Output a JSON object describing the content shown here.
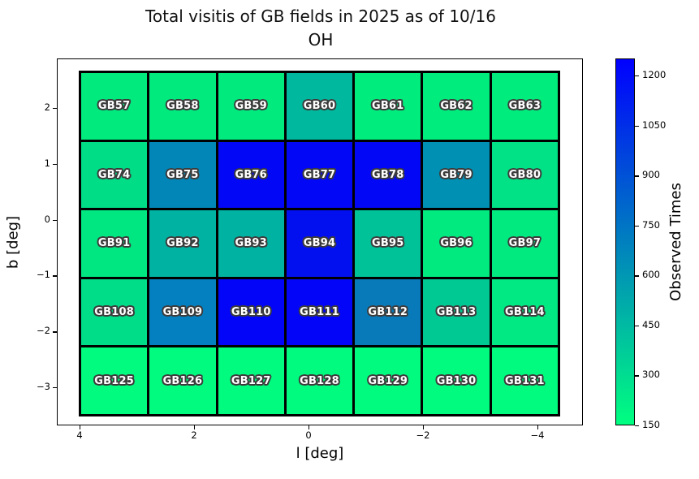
{
  "title": {
    "line1": "Total visitis of GB fields in 2025 as of 10/16",
    "line2": "OH"
  },
  "axes": {
    "xlabel": "l [deg]",
    "ylabel": "b [deg]",
    "x_ticks": [
      "4",
      "2",
      "0",
      "−2",
      "−4"
    ],
    "y_ticks": [
      "2",
      "1",
      "0",
      "−1",
      "−2",
      "−3"
    ]
  },
  "colorbar": {
    "label": "Observed Times",
    "ticks": [
      "1200",
      "1050",
      "900",
      "750",
      "600",
      "450",
      "300",
      "150"
    ],
    "top_color": "#0000ff",
    "bottom_color": "#00ff80"
  },
  "chart_data": {
    "type": "heatmap",
    "title": "Total visitis of GB fields in 2025 as of 10/16 OH",
    "xlabel": "l [deg]",
    "ylabel": "b [deg]",
    "x_tick_values": [
      4,
      2,
      0,
      -2,
      -4
    ],
    "y_tick_values": [
      2,
      1,
      0,
      -1,
      -2,
      -3
    ],
    "grid": {
      "rows": 5,
      "cols": 7
    },
    "colormap": "winter_r (green = few visits, blue = many visits)",
    "colorbar_label": "Observed Times",
    "colorbar_ticks": [
      150,
      300,
      450,
      600,
      750,
      900,
      1050,
      1200
    ],
    "value_range": [
      150,
      1250
    ],
    "note": "cell values estimated from colormap",
    "cells": [
      {
        "label": "GB57",
        "color": "#00ea7e",
        "value": 215
      },
      {
        "label": "GB58",
        "color": "#00ea7e",
        "value": 215
      },
      {
        "label": "GB59",
        "color": "#00ea7e",
        "value": 215
      },
      {
        "label": "GB60",
        "color": "#00b89e",
        "value": 455
      },
      {
        "label": "GB61",
        "color": "#00ed7d",
        "value": 205
      },
      {
        "label": "GB62",
        "color": "#00ed7d",
        "value": 205
      },
      {
        "label": "GB63",
        "color": "#00ed7d",
        "value": 205
      },
      {
        "label": "GB74",
        "color": "#00dd87",
        "value": 290
      },
      {
        "label": "GB75",
        "color": "#0286b7",
        "value": 670
      },
      {
        "label": "GB76",
        "color": "#0207f6",
        "value": 1225
      },
      {
        "label": "GB77",
        "color": "#0207f6",
        "value": 1225
      },
      {
        "label": "GB78",
        "color": "#0207f6",
        "value": 1225
      },
      {
        "label": "GB79",
        "color": "#0090b4",
        "value": 630
      },
      {
        "label": "GB80",
        "color": "#00e285",
        "value": 275
      },
      {
        "label": "GB91",
        "color": "#00e681",
        "value": 260
      },
      {
        "label": "GB92",
        "color": "#00b2a1",
        "value": 480
      },
      {
        "label": "GB93",
        "color": "#00b2a1",
        "value": 480
      },
      {
        "label": "GB94",
        "color": "#0210f0",
        "value": 1180
      },
      {
        "label": "GB95",
        "color": "#00c298",
        "value": 415
      },
      {
        "label": "GB96",
        "color": "#00ea80",
        "value": 240
      },
      {
        "label": "GB97",
        "color": "#00ea80",
        "value": 240
      },
      {
        "label": "GB108",
        "color": "#00dd88",
        "value": 290
      },
      {
        "label": "GB109",
        "color": "#0480c0",
        "value": 700
      },
      {
        "label": "GB110",
        "color": "#0205f8",
        "value": 1235
      },
      {
        "label": "GB111",
        "color": "#0205f8",
        "value": 1235
      },
      {
        "label": "GB112",
        "color": "#087ab9",
        "value": 725
      },
      {
        "label": "GB113",
        "color": "#00c994",
        "value": 385
      },
      {
        "label": "GB114",
        "color": "#00e983",
        "value": 245
      },
      {
        "label": "GB125",
        "color": "#00fb7e",
        "value": 165
      },
      {
        "label": "GB126",
        "color": "#00fb7e",
        "value": 165
      },
      {
        "label": "GB127",
        "color": "#00fb7e",
        "value": 165
      },
      {
        "label": "GB128",
        "color": "#00fb7e",
        "value": 165
      },
      {
        "label": "GB129",
        "color": "#00fb7e",
        "value": 165
      },
      {
        "label": "GB130",
        "color": "#00fb7e",
        "value": 165
      },
      {
        "label": "GB131",
        "color": "#00fb7e",
        "value": 165
      }
    ]
  }
}
